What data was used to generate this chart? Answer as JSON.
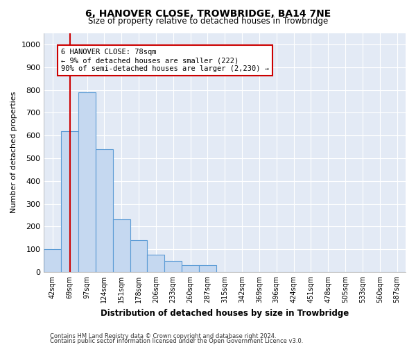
{
  "title1": "6, HANOVER CLOSE, TROWBRIDGE, BA14 7NE",
  "title2": "Size of property relative to detached houses in Trowbridge",
  "xlabel": "Distribution of detached houses by size in Trowbridge",
  "ylabel": "Number of detached properties",
  "categories": [
    "42sqm",
    "69sqm",
    "97sqm",
    "124sqm",
    "151sqm",
    "178sqm",
    "206sqm",
    "233sqm",
    "260sqm",
    "287sqm",
    "315sqm",
    "342sqm",
    "369sqm",
    "396sqm",
    "424sqm",
    "451sqm",
    "478sqm",
    "505sqm",
    "533sqm",
    "560sqm",
    "587sqm"
  ],
  "bar_values": [
    100,
    620,
    790,
    540,
    230,
    140,
    75,
    50,
    30,
    30,
    0,
    0,
    0,
    0,
    0,
    0,
    0,
    0,
    0,
    0,
    0
  ],
  "bar_color": "#c5d8f0",
  "bar_edge_color": "#5b9bd5",
  "background_color": "#e3eaf5",
  "grid_color": "#ffffff",
  "vline_x_index": 1,
  "vline_color": "#cc0000",
  "annotation_text": "6 HANOVER CLOSE: 78sqm\n← 9% of detached houses are smaller (222)\n90% of semi-detached houses are larger (2,230) →",
  "annotation_box_color": "#ffffff",
  "annotation_box_edge": "#cc0000",
  "ylim": [
    0,
    1050
  ],
  "yticks": [
    0,
    100,
    200,
    300,
    400,
    500,
    600,
    700,
    800,
    900,
    1000
  ],
  "footnote1": "Contains HM Land Registry data © Crown copyright and database right 2024.",
  "footnote2": "Contains public sector information licensed under the Open Government Licence v3.0."
}
